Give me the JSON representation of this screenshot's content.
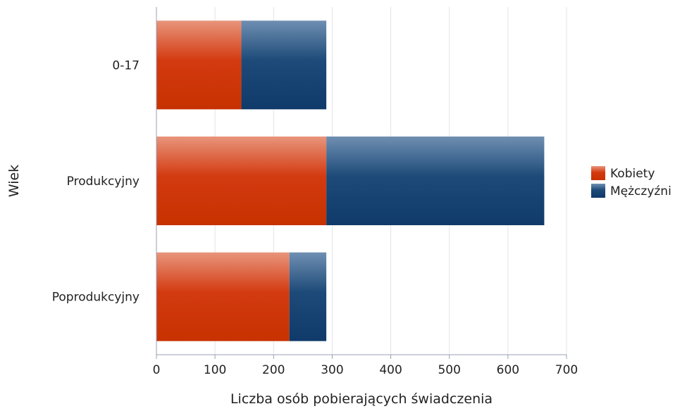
{
  "chart_data": {
    "type": "bar",
    "orientation": "horizontal",
    "stacked": true,
    "categories": [
      "0-17",
      "Produkcyjny",
      "Poprodukcyjny"
    ],
    "series": [
      {
        "name": "Kobiety",
        "values": [
          145,
          290,
          227
        ],
        "color": "#d33a10"
      },
      {
        "name": "Mężczyźni",
        "values": [
          145,
          372,
          63
        ],
        "color": "#1d4a78"
      }
    ],
    "xlabel": "Liczba osób pobierających świadczenia",
    "ylabel": "Wiek",
    "xlim": [
      0,
      700
    ],
    "xticks": [
      0,
      100,
      200,
      300,
      400,
      500,
      600,
      700
    ],
    "grid": true,
    "legend": "right"
  }
}
